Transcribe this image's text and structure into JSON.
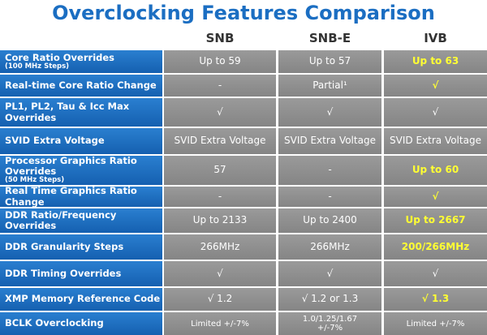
{
  "header": {
    "title": "Overclocking Features Comparison"
  },
  "table": {
    "columns": [
      "SNB",
      "SNB-E",
      "IVB"
    ],
    "rows": [
      {
        "label": "Core Ratio Overrides",
        "sublabel": "(100 MHz Steps)",
        "cells": [
          "Up to 59",
          "Up to 57",
          "Up to 63"
        ]
      },
      {
        "label": "Real-time Core Ratio Change",
        "cells": [
          "-",
          "Partial¹",
          "√"
        ]
      },
      {
        "label": "PL1, PL2, Tau & Icc Max Overrides",
        "cells": [
          "√",
          "√",
          "√"
        ]
      },
      {
        "label": "SVID Extra Voltage",
        "cells": [
          "SVID Extra Voltage",
          "SVID Extra Voltage",
          "SVID Extra Voltage"
        ]
      },
      {
        "label": "Processor Graphics Ratio Overrides",
        "sublabel": "(50 MHz Steps)",
        "cells": [
          "57",
          "-",
          "Up to 60"
        ]
      },
      {
        "label": "Real Time Graphics Ratio Change",
        "cells": [
          "-",
          "-",
          "√"
        ]
      },
      {
        "label": "DDR Ratio/Frequency Overrides",
        "cells": [
          "Up to 2133",
          "Up to 2400",
          "Up to 2667"
        ]
      },
      {
        "label": "DDR Granularity Steps",
        "cells": [
          "266MHz",
          "266MHz",
          "200/266MHz"
        ]
      },
      {
        "label": "DDR Timing Overrides",
        "cells": [
          "√",
          "√",
          "√"
        ]
      },
      {
        "label": "XMP Memory Reference Code",
        "cells": [
          "√ 1.2",
          "√ 1.2 or 1.3",
          "√ 1.3"
        ]
      },
      {
        "label": "BCLK Overclocking",
        "cells": [
          "Limited +/-7%",
          "1.0/1.25/1.67\n+/-7%",
          "Limited +/-7%"
        ]
      }
    ]
  }
}
